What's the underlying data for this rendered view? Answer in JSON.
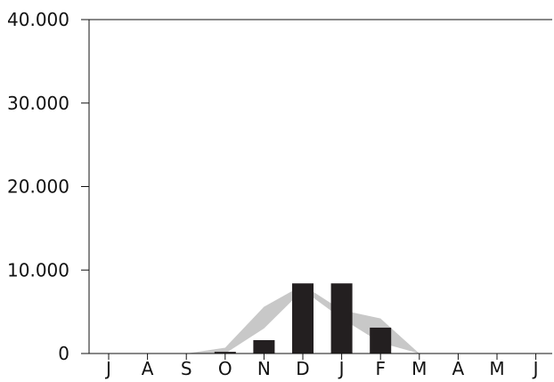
{
  "chart_data": {
    "type": "bar",
    "categories": [
      "J",
      "A",
      "S",
      "O",
      "N",
      "D",
      "J",
      "F",
      "M",
      "A",
      "M",
      "J"
    ],
    "series": [
      {
        "type": "bar",
        "values": [
          0,
          0,
          0,
          200,
          1600,
          8400,
          8400,
          3100,
          0,
          0,
          0,
          0
        ]
      },
      {
        "type": "band",
        "low": [
          0,
          0,
          0,
          0,
          3000,
          7600,
          4200,
          1300,
          0,
          0,
          0,
          0
        ],
        "high": [
          0,
          0,
          0,
          700,
          5600,
          8200,
          5200,
          4200,
          0,
          0,
          0,
          0
        ]
      }
    ],
    "y_ticks": [
      {
        "value": 0,
        "label": "0"
      },
      {
        "value": 10000,
        "label": "10.000"
      },
      {
        "value": 20000,
        "label": "20.000"
      },
      {
        "value": 30000,
        "label": "30.000"
      },
      {
        "value": 40000,
        "label": "40.000"
      }
    ],
    "ylim": [
      0,
      40000
    ],
    "title": "",
    "xlabel": "",
    "ylabel": "",
    "grid": false,
    "colors": {
      "bar": "#231f20",
      "band": "#c8c8c8",
      "axis": "#111111"
    }
  }
}
